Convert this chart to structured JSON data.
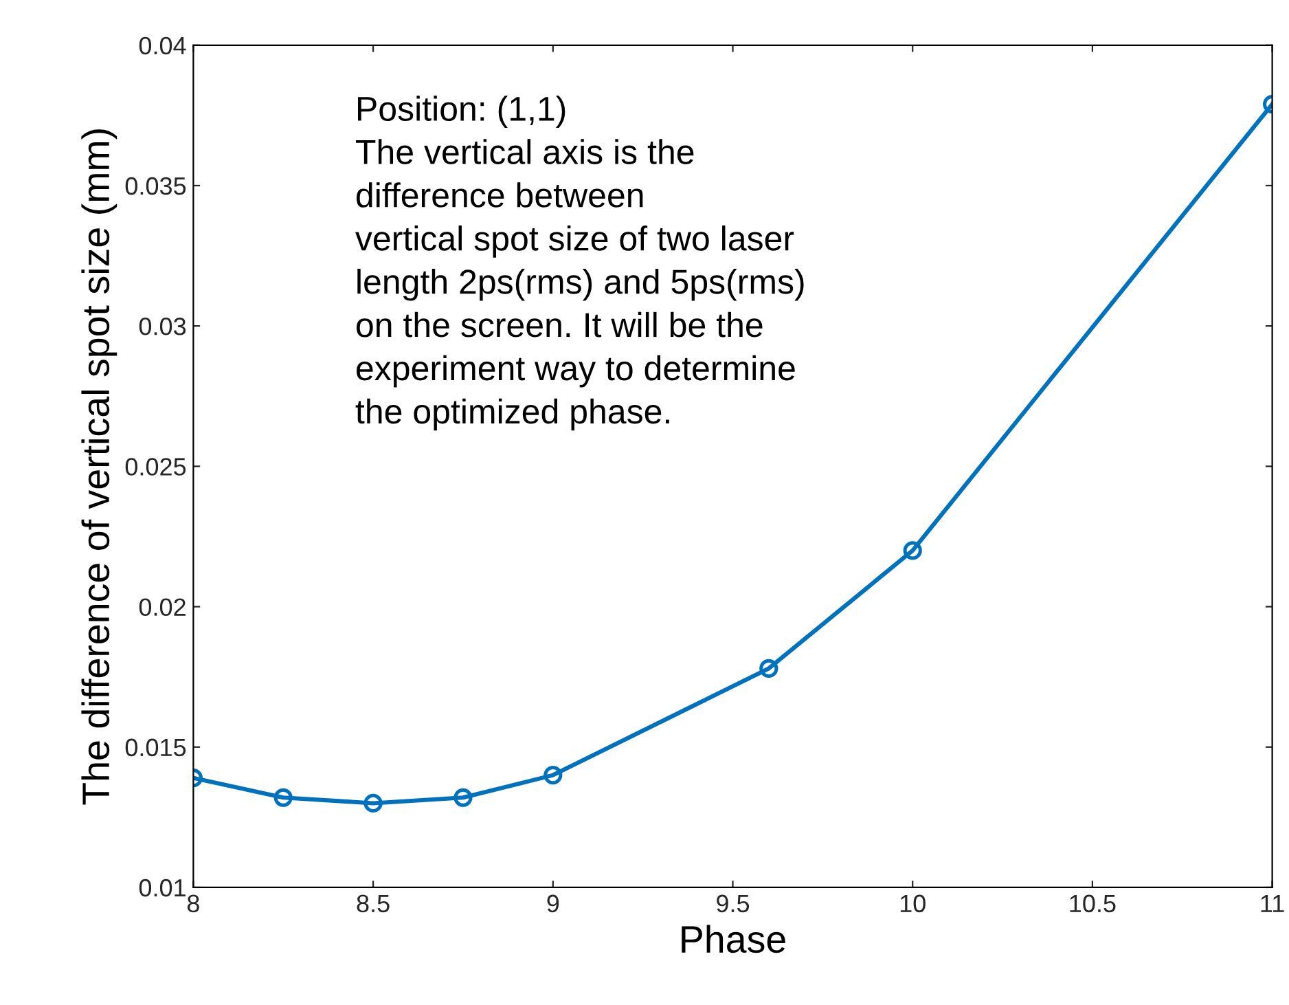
{
  "chart_data": {
    "type": "line",
    "xlabel": "Phase",
    "ylabel": "The difference of vertical spot size (mm)",
    "annotations": [
      "Position: (1,1)\nThe vertical axis is the\ndifference between\nvertical spot size of two laser\nlength 2ps(rms) and 5ps(rms)\non the screen. It will be the\nexperiment way to determine\nthe optimized phase."
    ],
    "series": [
      {
        "color": "#0072bd",
        "x": [
          8,
          8.25,
          8.5,
          8.75,
          9,
          9.6,
          10,
          11
        ],
        "values": [
          0.0139,
          0.0132,
          0.013,
          0.0132,
          0.014,
          0.0178,
          0.022,
          0.0379
        ]
      }
    ],
    "xlim": [
      8,
      11
    ],
    "xticks": [
      8,
      8.5,
      9,
      9.5,
      10,
      10.5,
      11
    ],
    "ylim": [
      0.01,
      0.04
    ],
    "yticks": [
      0.01,
      0.015,
      0.02,
      0.025,
      0.03,
      0.035,
      0.04
    ],
    "marker": "circle",
    "line_style": "solid",
    "grid": false,
    "legend": false
  }
}
